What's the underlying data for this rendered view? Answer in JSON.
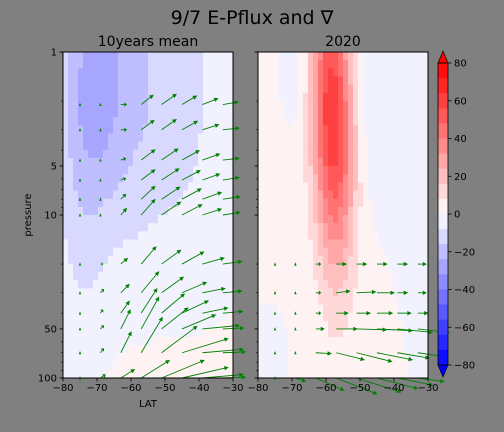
{
  "figure": {
    "suptitle": "9/7 E-Pflux and ∇",
    "background": "#808080"
  },
  "chart_data": [
    {
      "type": "heatmap",
      "panel": "left",
      "title": "10years mean",
      "xlabel": "LAT",
      "ylabel": "pressure",
      "xlim": [
        -80,
        -30
      ],
      "ylim": [
        100,
        1
      ],
      "yscale": "log",
      "xticks": [
        "−80",
        "−70",
        "−60",
        "−50",
        "−40",
        "−30"
      ],
      "xtick_values": [
        -80,
        -70,
        -60,
        -50,
        -40,
        -30
      ],
      "yticks": [
        "1",
        "5",
        "10",
        "50",
        "100"
      ],
      "ytick_values": [
        1,
        5,
        10,
        50,
        100
      ],
      "field_features": [
        {
          "lat": -70,
          "p": 1.2,
          "value": -20,
          "sx": 7,
          "sy": 0.55
        },
        {
          "lat": -57,
          "p": 1.5,
          "value": -9,
          "sx": 6,
          "sy": 0.9
        },
        {
          "lat": -45,
          "p": 1.3,
          "value": -9,
          "sx": 7,
          "sy": 0.7
        },
        {
          "lat": -70,
          "p": 3.5,
          "value": -9,
          "sx": 8,
          "sy": 0.7
        },
        {
          "lat": -75,
          "p": 12,
          "value": -6,
          "sx": 5,
          "sy": 0.7
        },
        {
          "lat": -45,
          "p": 6,
          "value": -3,
          "sx": 10,
          "sy": 0.8
        },
        {
          "lat": -55,
          "p": 60,
          "value": 3,
          "sx": 15,
          "sy": 0.6
        }
      ],
      "quiver": {
        "lats": [
          -75,
          -69,
          -63,
          -57,
          -51,
          -45,
          -39,
          -33
        ],
        "pressures": [
          2.1,
          3.0,
          4.6,
          6.1,
          8.0,
          10.0,
          20.0,
          30.0,
          40.0,
          50.0,
          70.0,
          100.0
        ],
        "rows": [
          [
            [
              0,
              0
            ],
            [
              0,
              0
            ],
            [
              0.35,
              0
            ],
            [
              0.7,
              0.55
            ],
            [
              0.85,
              0.6
            ],
            [
              0.85,
              0.5
            ],
            [
              0.9,
              0.35
            ],
            [
              0.9,
              0.15
            ]
          ],
          [
            [
              0,
              0
            ],
            [
              0,
              0
            ],
            [
              0.35,
              0
            ],
            [
              0.75,
              0.55
            ],
            [
              0.85,
              0.6
            ],
            [
              0.9,
              0.5
            ],
            [
              0.95,
              0.3
            ],
            [
              0.95,
              0.1
            ]
          ],
          [
            [
              0,
              0
            ],
            [
              0,
              0
            ],
            [
              0.3,
              0.1
            ],
            [
              0.8,
              0.6
            ],
            [
              0.95,
              0.65
            ],
            [
              1.0,
              0.55
            ],
            [
              1.0,
              0.35
            ],
            [
              0.95,
              0.1
            ]
          ],
          [
            [
              0,
              0
            ],
            [
              0,
              0
            ],
            [
              0.3,
              0.1
            ],
            [
              0.8,
              0.6
            ],
            [
              1.0,
              0.65
            ],
            [
              1.05,
              0.55
            ],
            [
              1.0,
              0.35
            ],
            [
              0.95,
              0.15
            ]
          ],
          [
            [
              0,
              0
            ],
            [
              0,
              0
            ],
            [
              0.3,
              0.3
            ],
            [
              0.8,
              0.75
            ],
            [
              1.05,
              0.7
            ],
            [
              1.1,
              0.6
            ],
            [
              1.1,
              0.4
            ],
            [
              1.0,
              0.15
            ]
          ],
          [
            [
              0,
              0
            ],
            [
              0,
              0
            ],
            [
              0.35,
              0.4
            ],
            [
              0.8,
              0.9
            ],
            [
              1.1,
              0.75
            ],
            [
              1.15,
              0.6
            ],
            [
              1.1,
              0.35
            ],
            [
              1.0,
              0.15
            ]
          ],
          [
            [
              0,
              0
            ],
            [
              0.15,
              0
            ],
            [
              0.4,
              0.35
            ],
            [
              0.85,
              1.0
            ],
            [
              1.1,
              0.8
            ],
            [
              1.25,
              0.7
            ],
            [
              1.25,
              0.35
            ],
            [
              1.1,
              0.15
            ]
          ],
          [
            [
              0,
              0
            ],
            [
              0.2,
              0.2
            ],
            [
              0.5,
              0.5
            ],
            [
              1.0,
              1.2
            ],
            [
              1.25,
              0.9
            ],
            [
              1.4,
              0.6
            ],
            [
              1.3,
              0.25
            ],
            [
              1.1,
              0.1
            ]
          ],
          [
            [
              0,
              0
            ],
            [
              0.15,
              0.2
            ],
            [
              0.5,
              0.7
            ],
            [
              0.9,
              1.4
            ],
            [
              1.3,
              1.1
            ],
            [
              1.5,
              0.7
            ],
            [
              1.45,
              0.3
            ],
            [
              1.15,
              0.1
            ]
          ],
          [
            [
              0,
              0
            ],
            [
              0.2,
              0.2
            ],
            [
              0.55,
              1.1
            ],
            [
              1.0,
              1.8
            ],
            [
              1.5,
              1.2
            ],
            [
              1.9,
              0.8
            ],
            [
              2.1,
              0.2
            ],
            [
              1.2,
              0.05
            ]
          ],
          [
            [
              0,
              0
            ],
            [
              0.2,
              0.25
            ],
            [
              0.6,
              1.2
            ],
            [
              1.2,
              2.0
            ],
            [
              2.0,
              1.5
            ],
            [
              2.6,
              0.8
            ],
            [
              2.3,
              0.2
            ],
            [
              1.3,
              0.05
            ]
          ],
          [
            [
              0,
              0
            ],
            [
              0.3,
              0.2
            ],
            [
              0.8,
              0.5
            ],
            [
              1.6,
              1.0
            ],
            [
              2.4,
              1.0
            ],
            [
              2.6,
              0.6
            ],
            [
              2.3,
              0.2
            ],
            [
              1.3,
              0.05
            ]
          ]
        ]
      }
    },
    {
      "type": "heatmap",
      "panel": "right",
      "title": "2020",
      "xlim": [
        -80,
        -30
      ],
      "ylim": [
        100,
        1
      ],
      "yscale": "log",
      "xticks": [
        "−80",
        "−70",
        "−60",
        "−50",
        "−40",
        "−30"
      ],
      "xtick_values": [
        -80,
        -70,
        -60,
        -50,
        -40,
        -30
      ],
      "field_features": [
        {
          "lat": -60,
          "p": 1.3,
          "value": 30,
          "sx": 4,
          "sy": 0.5
        },
        {
          "lat": -57,
          "p": 2.5,
          "value": 25,
          "sx": 4,
          "sy": 0.55
        },
        {
          "lat": -57,
          "p": 5.0,
          "value": 15,
          "sx": 4,
          "sy": 0.5
        },
        {
          "lat": -57,
          "p": 10,
          "value": 8,
          "sx": 4,
          "sy": 0.5
        },
        {
          "lat": -75,
          "p": 2.5,
          "value": 6,
          "sx": 4,
          "sy": 0.9
        },
        {
          "lat": -70,
          "p": 1.2,
          "value": -8,
          "sx": 5,
          "sy": 0.3
        },
        {
          "lat": -45,
          "p": 1.8,
          "value": -8,
          "sx": 5,
          "sy": 0.5
        },
        {
          "lat": -33,
          "p": 4.0,
          "value": -5,
          "sx": 5,
          "sy": 0.6
        },
        {
          "lat": -75,
          "p": 35,
          "value": -3,
          "sx": 4,
          "sy": 0.8
        },
        {
          "lat": -55,
          "p": 25,
          "value": 3,
          "sx": 10,
          "sy": 0.8
        }
      ],
      "quiver": {
        "lats": [
          -75,
          -69,
          -63,
          -57,
          -51,
          -45,
          -39,
          -33
        ],
        "pressures": [
          20.0,
          30.0,
          40.0,
          50.0,
          70.0,
          100.0
        ],
        "rows": [
          [
            [
              0,
              0
            ],
            [
              0,
              0
            ],
            [
              0.3,
              0
            ],
            [
              0.6,
              0
            ],
            [
              0.6,
              0
            ],
            [
              0.6,
              0
            ],
            [
              0.6,
              0
            ],
            [
              0.5,
              0
            ]
          ],
          [
            [
              0,
              0
            ],
            [
              0,
              0
            ],
            [
              0.3,
              0
            ],
            [
              0.8,
              0.1
            ],
            [
              1.1,
              0.05
            ],
            [
              1.0,
              0
            ],
            [
              0.6,
              0
            ],
            [
              0.5,
              0
            ]
          ],
          [
            [
              0,
              0
            ],
            [
              0,
              0
            ],
            [
              0.3,
              0
            ],
            [
              0.7,
              0
            ],
            [
              0.8,
              0
            ],
            [
              0.9,
              0
            ],
            [
              0.8,
              0
            ],
            [
              0.6,
              0
            ]
          ],
          [
            [
              0,
              0
            ],
            [
              0,
              0
            ],
            [
              0.5,
              0
            ],
            [
              1.2,
              0
            ],
            [
              1.7,
              -0.05
            ],
            [
              2.0,
              -0.1
            ],
            [
              2.0,
              -0.2
            ],
            [
              1.8,
              -0.2
            ]
          ],
          [
            [
              0,
              0
            ],
            [
              0,
              0
            ],
            [
              0.9,
              -0.05
            ],
            [
              1.6,
              -0.4
            ],
            [
              2.0,
              -0.5
            ],
            [
              2.0,
              -0.4
            ],
            [
              1.8,
              -0.3
            ],
            [
              1.4,
              -0.2
            ]
          ],
          [
            [
              0,
              0
            ],
            [
              0.6,
              -0.2
            ],
            [
              1.6,
              -0.7
            ],
            [
              2.3,
              -0.9
            ],
            [
              2.5,
              -0.8
            ],
            [
              2.3,
              -0.6
            ],
            [
              2.0,
              -0.4
            ],
            [
              1.5,
              -0.2
            ]
          ]
        ]
      }
    }
  ],
  "colorbar": {
    "cmap": "bwr",
    "range": [
      -80,
      80
    ],
    "levels": 20,
    "ticks": [
      80,
      60,
      40,
      20,
      0,
      -20,
      -40,
      -60,
      -80
    ],
    "tick_labels": [
      "80",
      "60",
      "40",
      "20",
      "0",
      "−20",
      "−40",
      "−60",
      "−80"
    ],
    "extend": "both"
  },
  "colors": {
    "arrow": "#008000",
    "cmap_low": "#0000ff",
    "cmap_mid": "#ffffff",
    "cmap_high": "#ff0000"
  }
}
